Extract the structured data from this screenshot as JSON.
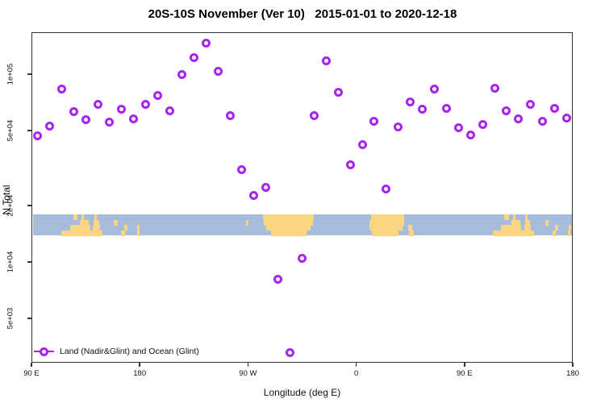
{
  "title": "20S-10S November (Ver 10)   2015-01-01 to 2020-12-18",
  "legend": {
    "label": "Land (Nadir&Glint) and Ocean (Glint)"
  },
  "colors": {
    "marker": "#a623f0",
    "ocean": "#a6bcda",
    "land": "#fcd581",
    "frame": "#333333",
    "text": "#111111"
  },
  "chart_data": {
    "type": "scatter",
    "title": "20S-10S November (Ver 10)   2015-01-01 to 2020-12-18",
    "xlabel": "Longitude (deg E)",
    "ylabel": "N Total",
    "x_axis": {
      "note": "longitude axis wraps eastward from 90E through 180, 90W, 0, 90E to 180; internal coords 90..540 deg",
      "range_deg": [
        90,
        540
      ],
      "ticks": [
        {
          "deg": 90,
          "label": "90 E"
        },
        {
          "deg": 180,
          "label": "180"
        },
        {
          "deg": 270,
          "label": "90 W"
        },
        {
          "deg": 360,
          "label": "0"
        },
        {
          "deg": 450,
          "label": "90 E"
        },
        {
          "deg": 540,
          "label": "180"
        }
      ]
    },
    "y_axis": {
      "scale": "log",
      "range": [
        2900,
        167000
      ],
      "ticks": [
        {
          "value": 100000,
          "label": "1e+05"
        },
        {
          "value": 50000,
          "label": "5e+04"
        },
        {
          "value": 20000,
          "label": "2e+04"
        },
        {
          "value": 10000,
          "label": "1e+04"
        },
        {
          "value": 5000,
          "label": "5e+03"
        }
      ]
    },
    "series": [
      {
        "name": "Land (Nadir&Glint) and Ocean (Glint)",
        "marker": "open-circle",
        "color": "#a623f0",
        "points": [
          [
            95,
            47000
          ],
          [
            105,
            53000
          ],
          [
            115,
            83000
          ],
          [
            125,
            63000
          ],
          [
            135,
            57000
          ],
          [
            145,
            69000
          ],
          [
            155,
            55500
          ],
          [
            165,
            65000
          ],
          [
            175,
            58000
          ],
          [
            185,
            69000
          ],
          [
            195,
            77000
          ],
          [
            205,
            64000
          ],
          [
            215,
            100000
          ],
          [
            225,
            122000
          ],
          [
            235,
            146000
          ],
          [
            245,
            104000
          ],
          [
            255,
            60000
          ],
          [
            265,
            31000
          ],
          [
            275,
            22500
          ],
          [
            285,
            25000
          ],
          [
            295,
            8100
          ],
          [
            305,
            3300
          ],
          [
            315,
            10500
          ],
          [
            325,
            60000
          ],
          [
            335,
            118000
          ],
          [
            345,
            80000
          ],
          [
            355,
            33000
          ],
          [
            365,
            42000
          ],
          [
            375,
            56000
          ],
          [
            385,
            24500
          ],
          [
            395,
            52500
          ],
          [
            405,
            71000
          ],
          [
            415,
            65000
          ],
          [
            425,
            83000
          ],
          [
            435,
            66000
          ],
          [
            445,
            52000
          ],
          [
            455,
            47500
          ],
          [
            465,
            54000
          ],
          [
            475,
            84000
          ],
          [
            485,
            63500
          ],
          [
            495,
            57500
          ],
          [
            505,
            69000
          ],
          [
            515,
            56000
          ],
          [
            525,
            66000
          ],
          [
            535,
            58500
          ]
        ]
      }
    ],
    "map_band": {
      "description": "20S-10S latitude land/ocean strip drawn across the plot",
      "value_top": 17900,
      "value_bottom": 13850,
      "rows": 4,
      "land_segments": [
        [
          0,
          124,
          127.5
        ],
        [
          0,
          131,
          133
        ],
        [
          0,
          141.5,
          143.5
        ],
        [
          0,
          282,
          325
        ],
        [
          0,
          372.5,
          400.5
        ],
        [
          0,
          484,
          487.5
        ],
        [
          0,
          491,
          493
        ],
        [
          0,
          501.5,
          503.5
        ],
        [
          1,
          129.5,
          137
        ],
        [
          1,
          141,
          145.5
        ],
        [
          1,
          158,
          161
        ],
        [
          1,
          268.5,
          270.5
        ],
        [
          1,
          283,
          324
        ],
        [
          1,
          371.5,
          400
        ],
        [
          1,
          489.5,
          497
        ],
        [
          1,
          501,
          505.5
        ],
        [
          1,
          518,
          521
        ],
        [
          2,
          121,
          138
        ],
        [
          2,
          140.5,
          146
        ],
        [
          2,
          166.5,
          169
        ],
        [
          2,
          177.5,
          179.5
        ],
        [
          2,
          285,
          322
        ],
        [
          2,
          371.5,
          399
        ],
        [
          2,
          403.5,
          407
        ],
        [
          2,
          481,
          498
        ],
        [
          2,
          500.5,
          506
        ],
        [
          2,
          526.5,
          529
        ],
        [
          2,
          537.5,
          539.5
        ],
        [
          3,
          114,
          148.5
        ],
        [
          3,
          164,
          167
        ],
        [
          3,
          177,
          179
        ],
        [
          3,
          289,
          319
        ],
        [
          3,
          373,
          395.5
        ],
        [
          3,
          404,
          408.5
        ],
        [
          3,
          474,
          508.5
        ],
        [
          3,
          524,
          527
        ],
        [
          3,
          537,
          539
        ]
      ]
    }
  }
}
